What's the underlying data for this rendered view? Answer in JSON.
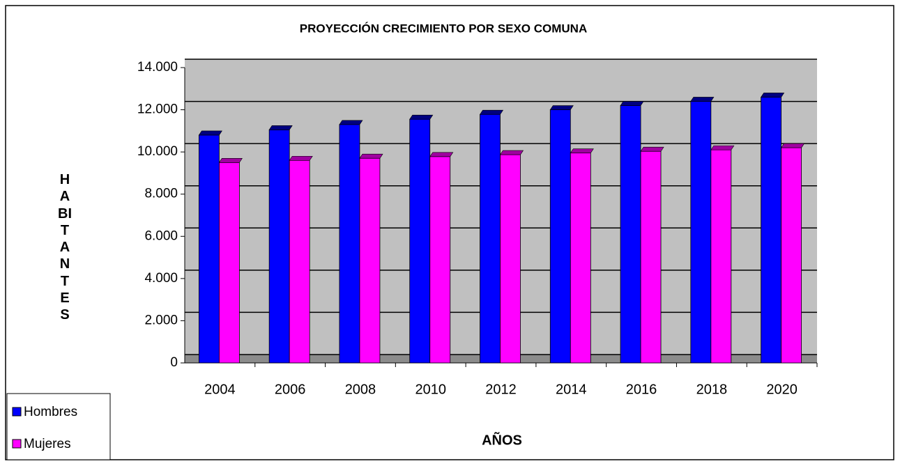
{
  "chart_data": {
    "type": "bar",
    "title": "PROYECCIÓN CRECIMIENTO POR SEXO COMUNA",
    "x_label": "AÑOS",
    "y_label": "HABITANTES",
    "categories": [
      "2004",
      "2006",
      "2008",
      "2010",
      "2012",
      "2014",
      "2016",
      "2018",
      "2020"
    ],
    "series": [
      {
        "name": "Hombres",
        "color": "#0000ff",
        "values": [
          10800,
          11050,
          11300,
          11550,
          11780,
          12000,
          12200,
          12400,
          12600
        ]
      },
      {
        "name": "Mujeres",
        "color": "#ff00ff",
        "values": [
          9500,
          9600,
          9700,
          9780,
          9870,
          9950,
          10030,
          10100,
          10200
        ]
      }
    ],
    "ylim": [
      0,
      14000
    ],
    "yticks": [
      0,
      {
        "value": 2000,
        "label": "2.000"
      },
      {
        "value": 4000,
        "label": "4.000"
      },
      {
        "value": 6000,
        "label": "6.000"
      },
      {
        "value": 8000,
        "label": "8.000"
      },
      {
        "value": 10000,
        "label": "10.000"
      },
      {
        "value": 12000,
        "label": "12.000"
      },
      {
        "value": 14000,
        "label": "14.000"
      }
    ],
    "grid": true,
    "legend": "bottom-left"
  }
}
